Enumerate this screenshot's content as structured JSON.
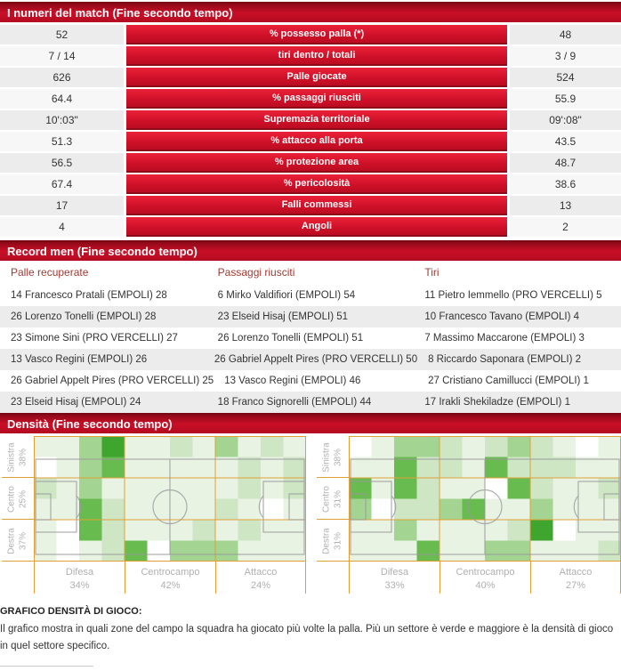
{
  "numbers": {
    "title": "I numeri del match (Fine secondo tempo)",
    "rows": [
      {
        "home": "52",
        "label": "% possesso palla (*)",
        "away": "48"
      },
      {
        "home": "7 / 14",
        "label": "tiri dentro / totali",
        "away": "3 / 9"
      },
      {
        "home": "626",
        "label": "Palle giocate",
        "away": "524"
      },
      {
        "home": "64.4",
        "label": "% passaggi riusciti",
        "away": "55.9"
      },
      {
        "home": "10':03\"",
        "label": "Supremazia territoriale",
        "away": "09':08\""
      },
      {
        "home": "51.3",
        "label": "% attacco alla porta",
        "away": "43.5"
      },
      {
        "home": "56.5",
        "label": "% protezione area",
        "away": "48.7"
      },
      {
        "home": "67.4",
        "label": "% pericolosità",
        "away": "38.6"
      },
      {
        "home": "17",
        "label": "Falli commessi",
        "away": "13"
      },
      {
        "home": "4",
        "label": "Angoli",
        "away": "2"
      }
    ]
  },
  "records": {
    "title": "Record men (Fine secondo tempo)",
    "columns": [
      {
        "header": "Palle recuperate",
        "items": [
          "14 Francesco Pratali (EMPOLI) 28",
          "26 Lorenzo Tonelli (EMPOLI) 28",
          "23 Simone Sini (PRO VERCELLI) 27",
          "13 Vasco Regini (EMPOLI) 26",
          "26 Gabriel Appelt Pires (PRO VERCELLI) 25",
          "23 Elseid Hisaj (EMPOLI) 24"
        ]
      },
      {
        "header": "Passaggi riusciti",
        "items": [
          "6 Mirko Valdifiori (EMPOLI) 54",
          "23 Elseid Hisaj (EMPOLI) 51",
          "26 Lorenzo Tonelli (EMPOLI) 51",
          "26 Gabriel Appelt Pires (PRO VERCELLI) 50",
          "13 Vasco Regini (EMPOLI) 46",
          "18 Franco Signorelli (EMPOLI) 44"
        ]
      },
      {
        "header": "Tiri",
        "items": [
          "11 Pietro Iemmello (PRO VERCELLI) 5",
          "10 Francesco Tavano (EMPOLI) 4",
          "7 Massimo Maccarone (EMPOLI) 3",
          "8 Riccardo Saponara (EMPOLI) 2",
          "27 Cristiano Camillucci (EMPOLI) 1",
          "17 Irakli Shekiladze (EMPOLI) 1"
        ]
      }
    ]
  },
  "density": {
    "title": "Densità (Fine secondo tempo)",
    "palette": [
      "#ffffff",
      "#e9f3e4",
      "#cfe6c5",
      "#a3d491",
      "#68bb4e",
      "#3ea52f"
    ],
    "grid_color": "#dfa035",
    "pitch_line_color": "#9a9a9a",
    "pitches": [
      {
        "side_labels": [
          {
            "name": "Sinistra",
            "pct": "38%"
          },
          {
            "name": "Centro",
            "pct": "25%"
          },
          {
            "name": "Destra",
            "pct": "37%"
          }
        ],
        "zone_labels": [
          {
            "name": "Difesa",
            "pct": "34%"
          },
          {
            "name": "Centrocampo",
            "pct": "42%"
          },
          {
            "name": "Attacco",
            "pct": "24%"
          }
        ],
        "cells": [
          [
            1,
            1,
            3,
            5,
            1,
            1,
            2,
            1,
            3,
            1,
            2,
            1
          ],
          [
            0,
            1,
            3,
            4,
            1,
            1,
            1,
            1,
            1,
            2,
            1,
            2
          ],
          [
            2,
            1,
            3,
            1,
            1,
            1,
            1,
            1,
            1,
            2,
            1,
            2
          ],
          [
            1,
            1,
            4,
            2,
            1,
            1,
            1,
            1,
            2,
            1,
            0,
            1
          ],
          [
            1,
            0,
            4,
            2,
            1,
            1,
            1,
            2,
            1,
            2,
            1,
            1
          ],
          [
            1,
            0,
            1,
            2,
            4,
            0,
            3,
            3,
            3,
            1,
            1,
            1
          ]
        ]
      },
      {
        "side_labels": [
          {
            "name": "Sinistra",
            "pct": "38%"
          },
          {
            "name": "Centro",
            "pct": "31%"
          },
          {
            "name": "Destra",
            "pct": "31%"
          }
        ],
        "zone_labels": [
          {
            "name": "Difesa",
            "pct": "33%"
          },
          {
            "name": "Centrocampo",
            "pct": "40%"
          },
          {
            "name": "Attacco",
            "pct": "27%"
          }
        ],
        "cells": [
          [
            0,
            1,
            3,
            3,
            2,
            1,
            2,
            3,
            2,
            1,
            0,
            1
          ],
          [
            1,
            1,
            4,
            2,
            2,
            1,
            4,
            2,
            2,
            2,
            1,
            1
          ],
          [
            4,
            1,
            4,
            2,
            1,
            1,
            0,
            4,
            2,
            1,
            1,
            2
          ],
          [
            3,
            0,
            2,
            2,
            3,
            4,
            1,
            1,
            3,
            1,
            1,
            1
          ],
          [
            1,
            1,
            3,
            1,
            1,
            1,
            1,
            2,
            5,
            0,
            1,
            1
          ],
          [
            1,
            1,
            1,
            4,
            1,
            1,
            3,
            3,
            1,
            1,
            1,
            2
          ]
        ]
      }
    ]
  },
  "note": {
    "title": "GRAFICO DENSITÀ DI GIOCO:",
    "body": "Il grafico mostra in quali zone del campo la squadra ha giocato più volte la palla. Più un settore è verde e maggiore è la densità di gioco in quel settore specifico."
  },
  "chart_data": [
    {
      "type": "heatmap",
      "title": "Densità (Fine secondo tempo) — squadra sinistra",
      "row_bands": [
        "Sinistra 38%",
        "Centro 25%",
        "Destra 37%"
      ],
      "col_bands": [
        "Difesa 34%",
        "Centrocampo 42%",
        "Attacco 24%"
      ],
      "legend": "density levels 0 (white) to 5 (dark green), grid 12 cols × 6 rows",
      "values": [
        [
          1,
          1,
          3,
          5,
          1,
          1,
          2,
          1,
          3,
          1,
          2,
          1
        ],
        [
          0,
          1,
          3,
          4,
          1,
          1,
          1,
          1,
          1,
          2,
          1,
          2
        ],
        [
          2,
          1,
          3,
          1,
          1,
          1,
          1,
          1,
          1,
          2,
          1,
          2
        ],
        [
          1,
          1,
          4,
          2,
          1,
          1,
          1,
          1,
          2,
          1,
          0,
          1
        ],
        [
          1,
          0,
          4,
          2,
          1,
          1,
          1,
          2,
          1,
          2,
          1,
          1
        ],
        [
          1,
          0,
          1,
          2,
          4,
          0,
          3,
          3,
          3,
          1,
          1,
          1
        ]
      ]
    },
    {
      "type": "heatmap",
      "title": "Densità (Fine secondo tempo) — squadra destra",
      "row_bands": [
        "Sinistra 38%",
        "Centro 31%",
        "Destra 31%"
      ],
      "col_bands": [
        "Difesa 33%",
        "Centrocampo 40%",
        "Attacco 27%"
      ],
      "legend": "density levels 0 (white) to 5 (dark green), grid 12 cols × 6 rows",
      "values": [
        [
          0,
          1,
          3,
          3,
          2,
          1,
          2,
          3,
          2,
          1,
          0,
          1
        ],
        [
          1,
          1,
          4,
          2,
          2,
          1,
          4,
          2,
          2,
          2,
          1,
          1
        ],
        [
          4,
          1,
          4,
          2,
          1,
          1,
          0,
          4,
          2,
          1,
          1,
          2
        ],
        [
          3,
          0,
          2,
          2,
          3,
          4,
          1,
          1,
          3,
          1,
          1,
          1
        ],
        [
          1,
          1,
          3,
          1,
          1,
          1,
          1,
          2,
          5,
          0,
          1,
          1
        ],
        [
          1,
          1,
          1,
          4,
          1,
          1,
          3,
          3,
          1,
          1,
          1,
          2
        ]
      ]
    }
  ]
}
